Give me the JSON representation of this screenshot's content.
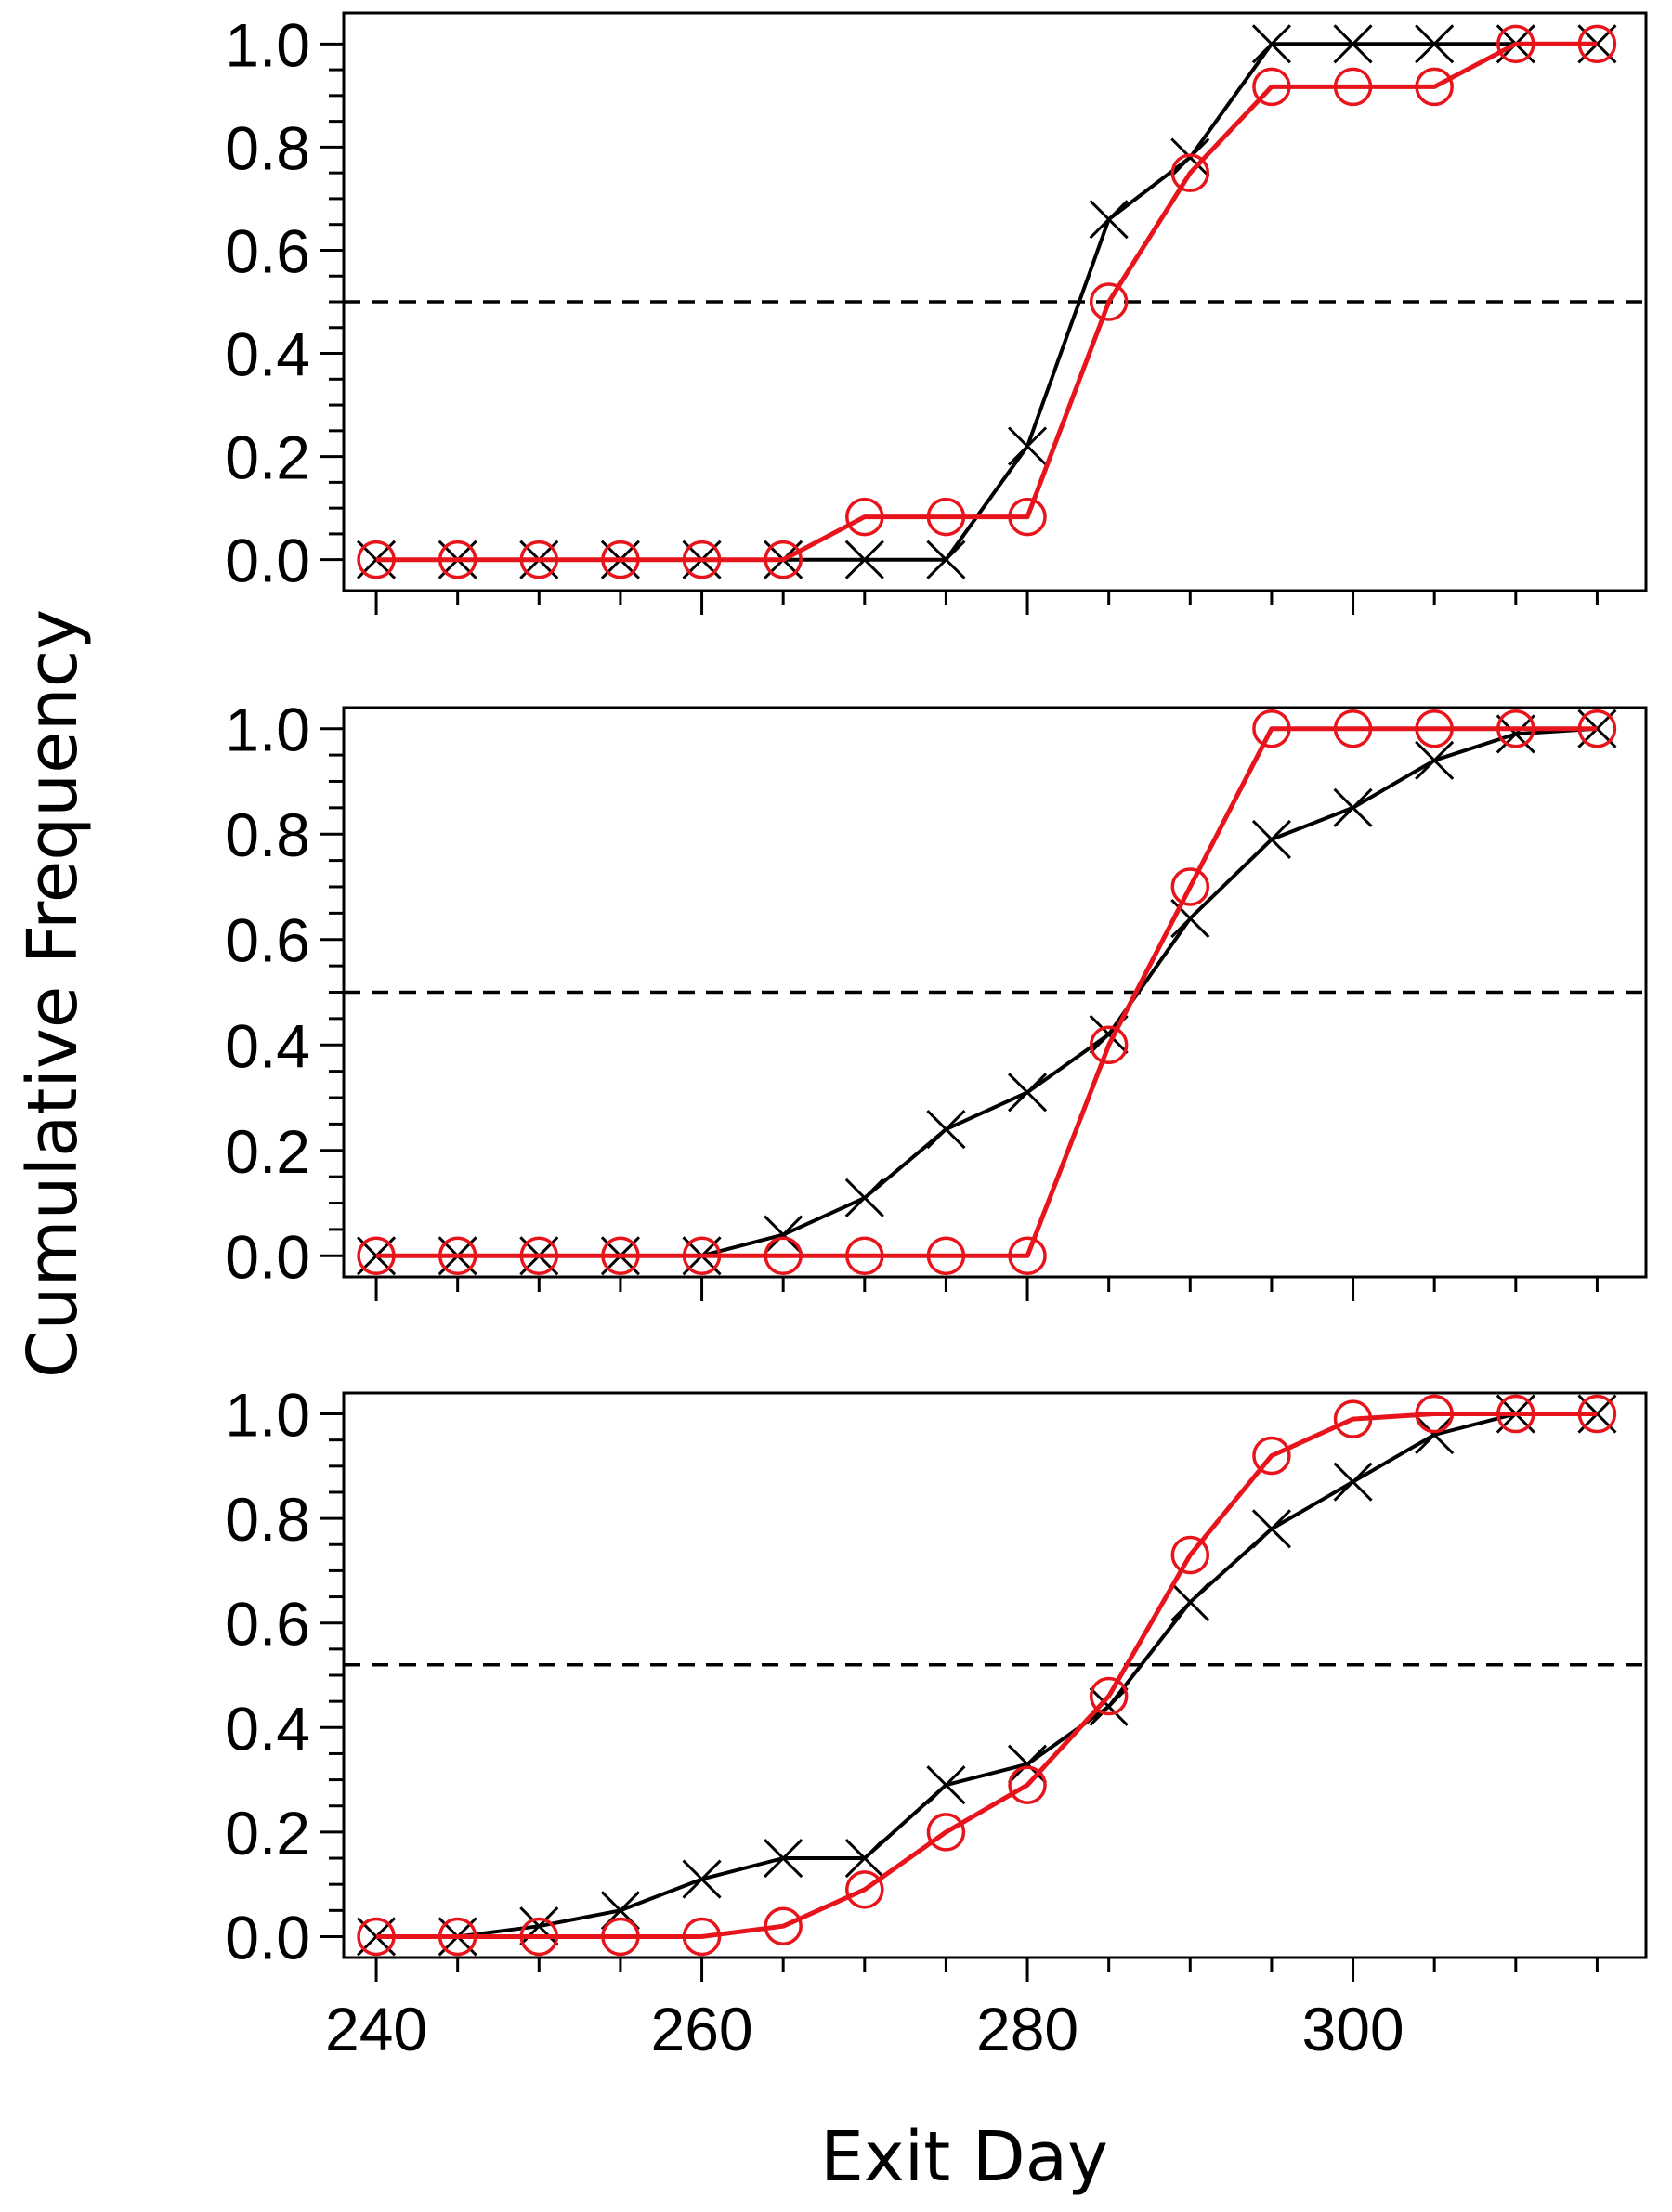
{
  "figure": {
    "ylabel": "Cumulative Frequency",
    "xlabel": "Exit Day",
    "colors": {
      "black_series": "#000000",
      "red_series": "#e8141c",
      "reference_line": "#000000"
    }
  },
  "chart_data": [
    {
      "type": "line",
      "title": "",
      "xlim": [
        238,
        318
      ],
      "ylim": [
        -0.06,
        1.06
      ],
      "xticks": [
        240,
        260,
        280,
        300
      ],
      "yticks": [
        0.0,
        0.2,
        0.4,
        0.6,
        0.8,
        1.0
      ],
      "ytick_labels": [
        "0.0",
        "0.2",
        "0.4",
        "0.6",
        "0.8",
        "1.0"
      ],
      "xtick_labels_visible": false,
      "reference_line_y": 0.5,
      "x": [
        240,
        245,
        250,
        255,
        260,
        265,
        270,
        275,
        280,
        285,
        290,
        295,
        300,
        305,
        310,
        315
      ],
      "series": [
        {
          "marker": "x",
          "color": "#000000",
          "values": [
            0.0,
            0.0,
            0.0,
            0.0,
            0.0,
            0.0,
            0.0,
            0.0,
            0.22,
            0.66,
            0.78,
            1.0,
            1.0,
            1.0,
            1.0,
            1.0
          ]
        },
        {
          "marker": "o",
          "color": "#e8141c",
          "values": [
            0.0,
            0.0,
            0.0,
            0.0,
            0.0,
            0.0,
            0.083,
            0.083,
            0.083,
            0.5,
            0.75,
            0.917,
            0.917,
            0.917,
            1.0,
            1.0
          ]
        }
      ]
    },
    {
      "type": "line",
      "title": "",
      "xlim": [
        238,
        318
      ],
      "ylim": [
        -0.04,
        1.04
      ],
      "xticks": [
        240,
        260,
        280,
        300
      ],
      "yticks": [
        0.0,
        0.2,
        0.4,
        0.6,
        0.8,
        1.0
      ],
      "ytick_labels": [
        "0.0",
        "0.2",
        "0.4",
        "0.6",
        "0.8",
        "1.0"
      ],
      "xtick_labels_visible": false,
      "reference_line_y": 0.5,
      "x": [
        240,
        245,
        250,
        255,
        260,
        265,
        270,
        275,
        280,
        285,
        290,
        295,
        300,
        305,
        310,
        315
      ],
      "series": [
        {
          "marker": "x",
          "color": "#000000",
          "values": [
            0.0,
            0.0,
            0.0,
            0.0,
            0.0,
            0.04,
            0.11,
            0.24,
            0.31,
            0.42,
            0.64,
            0.79,
            0.85,
            0.94,
            0.99,
            1.0
          ]
        },
        {
          "marker": "o",
          "color": "#e8141c",
          "values": [
            0.0,
            0.0,
            0.0,
            0.0,
            0.0,
            0.0,
            0.0,
            0.0,
            0.0,
            0.4,
            0.7,
            1.0,
            1.0,
            1.0,
            1.0,
            1.0
          ]
        }
      ]
    },
    {
      "type": "line",
      "title": "",
      "xlim": [
        238,
        318
      ],
      "ylim": [
        -0.04,
        1.04
      ],
      "xticks": [
        240,
        260,
        280,
        300
      ],
      "yticks": [
        0.0,
        0.2,
        0.4,
        0.6,
        0.8,
        1.0
      ],
      "ytick_labels": [
        "0.0",
        "0.2",
        "0.4",
        "0.6",
        "0.8",
        "1.0"
      ],
      "xtick_labels": [
        "240",
        "260",
        "280",
        "300"
      ],
      "xtick_labels_visible": true,
      "reference_line_y": 0.52,
      "x": [
        240,
        245,
        250,
        255,
        260,
        265,
        270,
        275,
        280,
        285,
        290,
        295,
        300,
        305,
        310,
        315
      ],
      "series": [
        {
          "marker": "x",
          "color": "#000000",
          "values": [
            0.0,
            0.0,
            0.02,
            0.05,
            0.11,
            0.15,
            0.15,
            0.29,
            0.33,
            0.44,
            0.64,
            0.78,
            0.87,
            0.96,
            1.0,
            1.0
          ]
        },
        {
          "marker": "o",
          "color": "#e8141c",
          "values": [
            0.0,
            0.0,
            0.0,
            0.0,
            0.0,
            0.02,
            0.09,
            0.2,
            0.29,
            0.46,
            0.73,
            0.92,
            0.99,
            1.0,
            1.0,
            1.0
          ]
        }
      ]
    }
  ]
}
